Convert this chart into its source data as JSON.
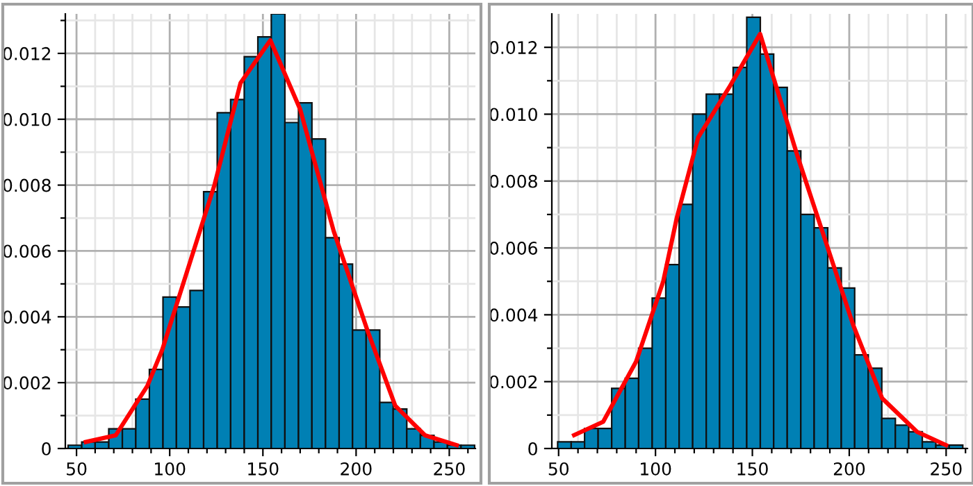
{
  "chart_data": [
    {
      "type": "histogram",
      "color": "#0080b4",
      "bins": [
        45.5,
        52.8,
        60.0,
        67.3,
        74.6,
        81.8,
        89.1,
        96.4,
        103.6,
        110.9,
        118.2,
        125.5,
        132.7,
        140.0,
        147.3,
        154.5,
        161.8,
        169.1,
        176.3,
        183.6,
        190.9,
        198.1,
        205.4,
        212.7,
        219.9,
        227.2,
        234.5,
        241.8,
        249.0,
        256.3,
        263.6
      ],
      "values": [
        0.0001,
        0.0002,
        0.0002,
        0.0006,
        0.0006,
        0.0015,
        0.0024,
        0.0046,
        0.0043,
        0.0048,
        0.0078,
        0.0102,
        0.0106,
        0.0119,
        0.0125,
        0.0132,
        0.0099,
        0.0105,
        0.0094,
        0.0064,
        0.0056,
        0.0036,
        0.0036,
        0.0014,
        0.0012,
        0.0006,
        0.0004,
        0.0002,
        0.0001,
        0.0001
      ],
      "series": [
        {
          "type": "line",
          "color": "#ff0000",
          "x": [
            55,
            71,
            88,
            96,
            124,
            138,
            154,
            170,
            188,
            206,
            221,
            237,
            254
          ],
          "values": [
            0.0002,
            0.0004,
            0.0019,
            0.003,
            0.008,
            0.0111,
            0.0124,
            0.0103,
            0.0066,
            0.0036,
            0.0013,
            0.0004,
            0.0001
          ]
        }
      ],
      "xlim": [
        44,
        264
      ],
      "ylim": [
        0,
        0.0132
      ],
      "xticks": [
        50,
        {
          "value": 60,
          "label": null
        },
        {
          "value": 70,
          "label": null
        },
        {
          "value": 80,
          "label": null
        },
        {
          "value": 90,
          "label": null
        },
        100,
        {
          "value": 110,
          "label": null
        },
        {
          "value": 120,
          "label": null
        },
        {
          "value": 130,
          "label": null
        },
        {
          "value": 140,
          "label": null
        },
        150,
        {
          "value": 160,
          "label": null
        },
        {
          "value": 170,
          "label": null
        },
        {
          "value": 180,
          "label": null
        },
        {
          "value": 190,
          "label": null
        },
        200,
        {
          "value": 210,
          "label": null
        },
        {
          "value": 220,
          "label": null
        },
        {
          "value": 230,
          "label": null
        },
        {
          "value": 240,
          "label": null
        },
        250,
        {
          "value": 260,
          "label": null
        }
      ],
      "yticks": [
        0,
        {
          "value": 0.001,
          "label": null
        },
        0.002,
        {
          "value": 0.003,
          "label": null
        },
        0.004,
        {
          "value": 0.005,
          "label": null
        },
        0.006,
        {
          "value": 0.007,
          "label": null
        },
        0.008,
        {
          "value": 0.009,
          "label": null
        },
        {
          "value": 0.01,
          "label": "0.010"
        },
        {
          "value": 0.011,
          "label": null
        },
        0.012,
        {
          "value": 0.013,
          "label": null
        }
      ],
      "grid": true,
      "legend": false
    },
    {
      "type": "histogram",
      "color": "#0080b4",
      "bins": [
        49.5,
        56.5,
        63.4,
        70.4,
        77.4,
        84.4,
        91.3,
        98.3,
        105.3,
        112.2,
        119.2,
        126.2,
        133.1,
        140.1,
        147.1,
        154.1,
        161.0,
        168.0,
        175.0,
        181.9,
        188.9,
        195.9,
        202.8,
        209.8,
        216.8,
        223.8,
        230.7,
        237.7,
        244.7,
        251.6,
        258.6
      ],
      "values": [
        0.0002,
        0.0002,
        0.0006,
        0.0006,
        0.0018,
        0.0021,
        0.003,
        0.0045,
        0.0055,
        0.0073,
        0.01,
        0.0106,
        0.0106,
        0.0114,
        0.0129,
        0.0118,
        0.0108,
        0.0089,
        0.007,
        0.0066,
        0.0054,
        0.0048,
        0.0028,
        0.0024,
        0.0009,
        0.0007,
        0.0005,
        0.0002,
        0.0001,
        0.0001
      ],
      "series": [
        {
          "type": "line",
          "color": "#ff0000",
          "x": [
            58,
            73,
            90,
            104,
            111,
            122,
            138,
            154,
            173,
            202,
            217,
            235,
            250
          ],
          "values": [
            0.0004,
            0.0008,
            0.0026,
            0.005,
            0.0069,
            0.0093,
            0.0108,
            0.0124,
            0.0088,
            0.0037,
            0.0015,
            0.0005,
            0.0001
          ]
        }
      ],
      "xlim": [
        46.5,
        261
      ],
      "ylim": [
        0,
        0.013
      ],
      "xticks": [
        50,
        {
          "value": 60,
          "label": null
        },
        {
          "value": 70,
          "label": null
        },
        {
          "value": 80,
          "label": null
        },
        {
          "value": 90,
          "label": null
        },
        100,
        {
          "value": 110,
          "label": null
        },
        {
          "value": 120,
          "label": null
        },
        {
          "value": 130,
          "label": null
        },
        {
          "value": 140,
          "label": null
        },
        150,
        {
          "value": 160,
          "label": null
        },
        {
          "value": 170,
          "label": null
        },
        {
          "value": 180,
          "label": null
        },
        {
          "value": 190,
          "label": null
        },
        200,
        {
          "value": 210,
          "label": null
        },
        {
          "value": 220,
          "label": null
        },
        {
          "value": 230,
          "label": null
        },
        {
          "value": 240,
          "label": null
        },
        250,
        {
          "value": 260,
          "label": null
        }
      ],
      "yticks": [
        0,
        {
          "value": 0.001,
          "label": null
        },
        0.002,
        {
          "value": 0.003,
          "label": null
        },
        0.004,
        {
          "value": 0.005,
          "label": null
        },
        0.006,
        {
          "value": 0.007,
          "label": null
        },
        0.008,
        {
          "value": 0.009,
          "label": null
        },
        {
          "value": 0.01,
          "label": "0.010"
        },
        {
          "value": 0.011,
          "label": null
        },
        0.012
      ],
      "grid": true,
      "legend": false
    }
  ]
}
